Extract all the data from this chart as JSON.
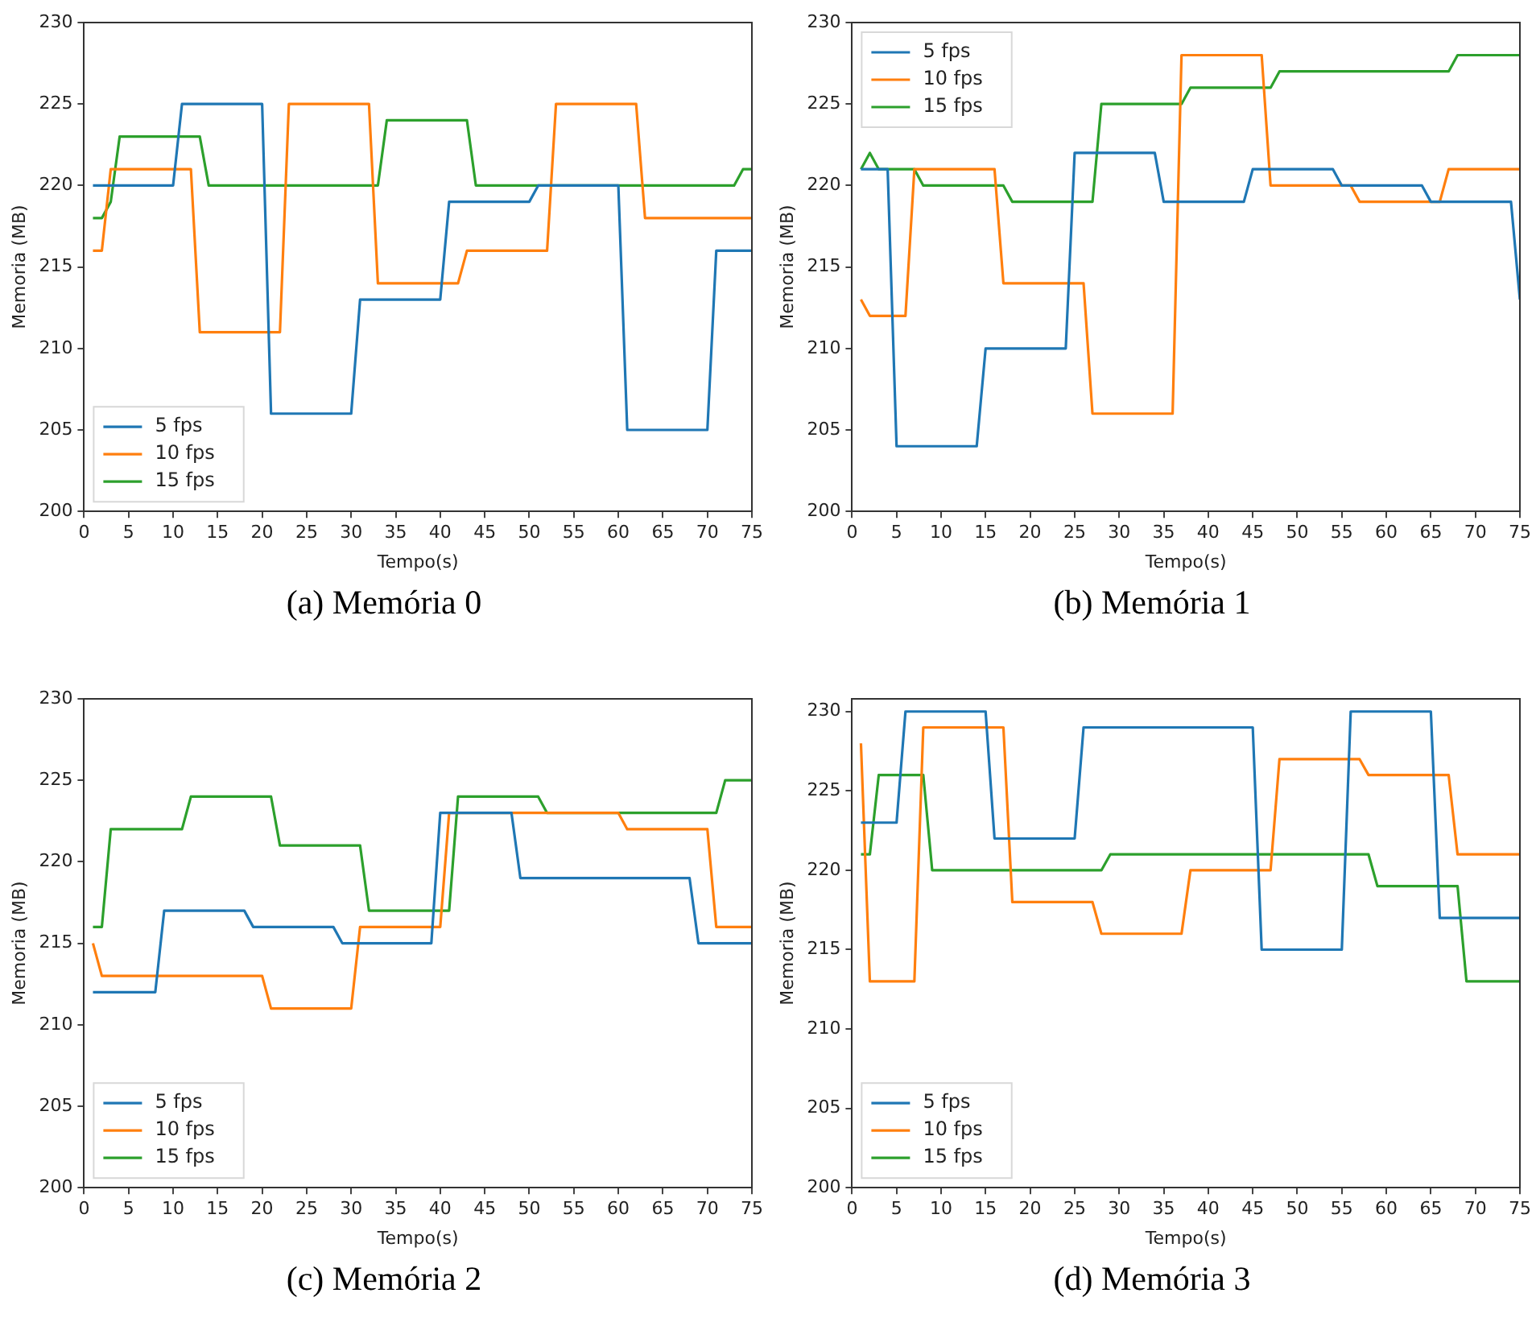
{
  "chart_data": [
    {
      "type": "line",
      "title": "(a) Memória 0",
      "xlabel": "Tempo(s)",
      "ylabel": "Memoria (MB)",
      "xlim": [
        0,
        75
      ],
      "xticks": [
        0,
        5,
        10,
        15,
        20,
        25,
        30,
        35,
        40,
        45,
        50,
        55,
        60,
        65,
        70,
        75
      ],
      "ylim": [
        200,
        230
      ],
      "yticks": [
        200,
        205,
        210,
        215,
        220,
        225,
        230
      ],
      "legend": "bottom left",
      "marker": "none",
      "series": [
        {
          "name": "5 fps",
          "color": "#1f77b4",
          "x": [
            1,
            10,
            11,
            20,
            21,
            30,
            31,
            40,
            41,
            50,
            51,
            60,
            61,
            70,
            71,
            75
          ],
          "values": [
            220,
            220,
            225,
            225,
            206,
            206,
            213,
            213,
            219,
            219,
            220,
            220,
            205,
            205,
            216,
            216
          ]
        },
        {
          "name": "10 fps",
          "color": "#ff7f0e",
          "x": [
            1,
            2,
            3,
            12,
            13,
            22,
            23,
            32,
            33,
            42,
            43,
            52,
            53,
            62,
            63,
            75
          ],
          "values": [
            216,
            216,
            221,
            221,
            211,
            211,
            225,
            225,
            214,
            214,
            216,
            216,
            225,
            225,
            218,
            218
          ]
        },
        {
          "name": "15 fps",
          "color": "#2ca02c",
          "x": [
            1,
            2,
            3,
            4,
            13,
            14,
            33,
            34,
            43,
            44,
            73,
            74,
            75
          ],
          "values": [
            218,
            218,
            219,
            223,
            223,
            220,
            220,
            224,
            224,
            220,
            220,
            221,
            221
          ]
        }
      ]
    },
    {
      "type": "line",
      "title": "(b) Memória 1",
      "xlabel": "Tempo(s)",
      "ylabel": "Memoria (MB)",
      "xlim": [
        0,
        75
      ],
      "xticks": [
        0,
        5,
        10,
        15,
        20,
        25,
        30,
        35,
        40,
        45,
        50,
        55,
        60,
        65,
        70,
        75
      ],
      "ylim": [
        200,
        230
      ],
      "yticks": [
        200,
        205,
        210,
        215,
        220,
        225,
        230
      ],
      "legend": "top left",
      "marker": "none",
      "series": [
        {
          "name": "5 fps",
          "color": "#1f77b4",
          "x": [
            1,
            4,
            5,
            14,
            15,
            24,
            25,
            34,
            35,
            44,
            45,
            54,
            55,
            64,
            65,
            74,
            75
          ],
          "values": [
            221,
            221,
            204,
            204,
            210,
            210,
            222,
            222,
            219,
            219,
            221,
            221,
            220,
            220,
            219,
            219,
            213
          ]
        },
        {
          "name": "10 fps",
          "color": "#ff7f0e",
          "x": [
            1,
            2,
            6,
            7,
            16,
            17,
            26,
            27,
            36,
            37,
            46,
            47,
            56,
            57,
            66,
            67,
            75
          ],
          "values": [
            213,
            212,
            212,
            221,
            221,
            214,
            214,
            206,
            206,
            228,
            228,
            220,
            220,
            219,
            219,
            221,
            221
          ]
        },
        {
          "name": "15 fps",
          "color": "#2ca02c",
          "x": [
            1,
            2,
            3,
            7,
            8,
            17,
            18,
            27,
            28,
            37,
            38,
            47,
            48,
            67,
            68,
            75
          ],
          "values": [
            221,
            222,
            221,
            221,
            220,
            220,
            219,
            219,
            225,
            225,
            226,
            226,
            227,
            227,
            228,
            228
          ]
        }
      ]
    },
    {
      "type": "line",
      "title": "(c) Memória 2",
      "xlabel": "Tempo(s)",
      "ylabel": "Memoria (MB)",
      "xlim": [
        0,
        75
      ],
      "xticks": [
        0,
        5,
        10,
        15,
        20,
        25,
        30,
        35,
        40,
        45,
        50,
        55,
        60,
        65,
        70,
        75
      ],
      "ylim": [
        200,
        230
      ],
      "yticks": [
        200,
        205,
        210,
        215,
        220,
        225,
        230
      ],
      "legend": "bottom left",
      "marker": "none",
      "series": [
        {
          "name": "5 fps",
          "color": "#1f77b4",
          "x": [
            1,
            8,
            9,
            18,
            19,
            28,
            29,
            39,
            40,
            48,
            49,
            68,
            69,
            75
          ],
          "values": [
            212,
            212,
            217,
            217,
            216,
            216,
            215,
            215,
            223,
            223,
            219,
            219,
            215,
            215
          ]
        },
        {
          "name": "10 fps",
          "color": "#ff7f0e",
          "x": [
            1,
            2,
            20,
            21,
            30,
            31,
            40,
            41,
            60,
            61,
            70,
            71,
            75
          ],
          "values": [
            215,
            213,
            213,
            211,
            211,
            216,
            216,
            223,
            223,
            222,
            222,
            216,
            216
          ]
        },
        {
          "name": "15 fps",
          "color": "#2ca02c",
          "x": [
            1,
            2,
            3,
            11,
            12,
            21,
            22,
            31,
            32,
            41,
            42,
            51,
            52,
            71,
            72,
            75
          ],
          "values": [
            216,
            216,
            222,
            222,
            224,
            224,
            221,
            221,
            217,
            217,
            224,
            224,
            223,
            223,
            225,
            225
          ]
        }
      ]
    },
    {
      "type": "line",
      "title": "(d) Memória 3",
      "xlabel": "Tempo(s)",
      "ylabel": "Memoria (MB)",
      "xlim": [
        0,
        75
      ],
      "xticks": [
        0,
        5,
        10,
        15,
        20,
        25,
        30,
        35,
        40,
        45,
        50,
        55,
        60,
        65,
        70,
        75
      ],
      "ylim": [
        200,
        230.8
      ],
      "yticks": [
        200,
        205,
        210,
        215,
        220,
        225,
        230
      ],
      "legend": "bottom left",
      "marker": "none",
      "series": [
        {
          "name": "5 fps",
          "color": "#1f77b4",
          "x": [
            1,
            5,
            6,
            15,
            16,
            25,
            26,
            45,
            46,
            55,
            56,
            65,
            66,
            75
          ],
          "values": [
            223,
            223,
            230,
            230,
            222,
            222,
            229,
            229,
            215,
            215,
            230,
            230,
            217,
            217
          ]
        },
        {
          "name": "10 fps",
          "color": "#ff7f0e",
          "x": [
            1,
            2,
            7,
            8,
            17,
            18,
            27,
            28,
            37,
            38,
            47,
            48,
            57,
            58,
            67,
            68,
            75
          ],
          "values": [
            228,
            213,
            213,
            229,
            229,
            218,
            218,
            216,
            216,
            220,
            220,
            227,
            227,
            226,
            226,
            221,
            221
          ]
        },
        {
          "name": "15 fps",
          "color": "#2ca02c",
          "x": [
            1,
            2,
            3,
            8,
            9,
            28,
            29,
            58,
            59,
            68,
            69,
            75
          ],
          "values": [
            221,
            221,
            226,
            226,
            220,
            220,
            221,
            221,
            219,
            219,
            213,
            213
          ]
        }
      ]
    }
  ]
}
